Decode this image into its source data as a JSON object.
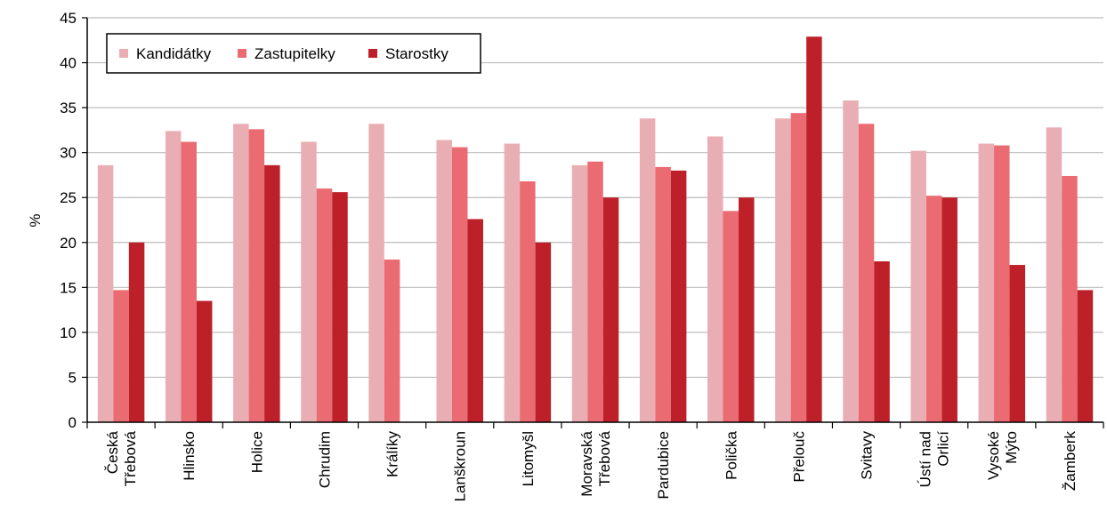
{
  "chart_data": {
    "type": "bar",
    "title": "",
    "xlabel": "",
    "ylabel": "%",
    "ylim": [
      0,
      45
    ],
    "yticks": [
      "0",
      "5",
      "10",
      "15",
      "20",
      "25",
      "30",
      "35",
      "40",
      "45"
    ],
    "grid": true,
    "legend_position": "top-left",
    "categories": [
      [
        "Česká",
        "Třebová"
      ],
      [
        "Hlinsko"
      ],
      [
        "Holice"
      ],
      [
        "Chrudim"
      ],
      [
        "Králíky"
      ],
      [
        "Lanškroun"
      ],
      [
        "Litomyšl"
      ],
      [
        "Moravská",
        "Třebová"
      ],
      [
        "Pardubice"
      ],
      [
        "Polička"
      ],
      [
        "Přelouč"
      ],
      [
        "Svitavy"
      ],
      [
        "Ústí nad",
        "Orlicí"
      ],
      [
        "Vysoké",
        "Mýto"
      ],
      [
        "Žamberk"
      ]
    ],
    "series": [
      {
        "name": "Kandidátky",
        "color": "#e9aeb3",
        "values": [
          28.6,
          32.4,
          33.2,
          31.2,
          33.2,
          31.4,
          31.0,
          28.6,
          33.8,
          31.8,
          33.8,
          35.8,
          30.2,
          31.0,
          32.8
        ]
      },
      {
        "name": "Zastupitelky",
        "color": "#ea6b72",
        "values": [
          14.7,
          31.2,
          32.6,
          26.0,
          18.1,
          30.6,
          26.8,
          29.0,
          28.4,
          23.5,
          34.4,
          33.2,
          25.2,
          30.8,
          27.4
        ]
      },
      {
        "name": "Starostky",
        "color": "#bd2028",
        "values": [
          20.0,
          13.5,
          28.6,
          25.6,
          0,
          22.6,
          20.0,
          25.0,
          28.0,
          25.0,
          42.9,
          17.9,
          25.0,
          17.5,
          14.7
        ]
      }
    ]
  }
}
